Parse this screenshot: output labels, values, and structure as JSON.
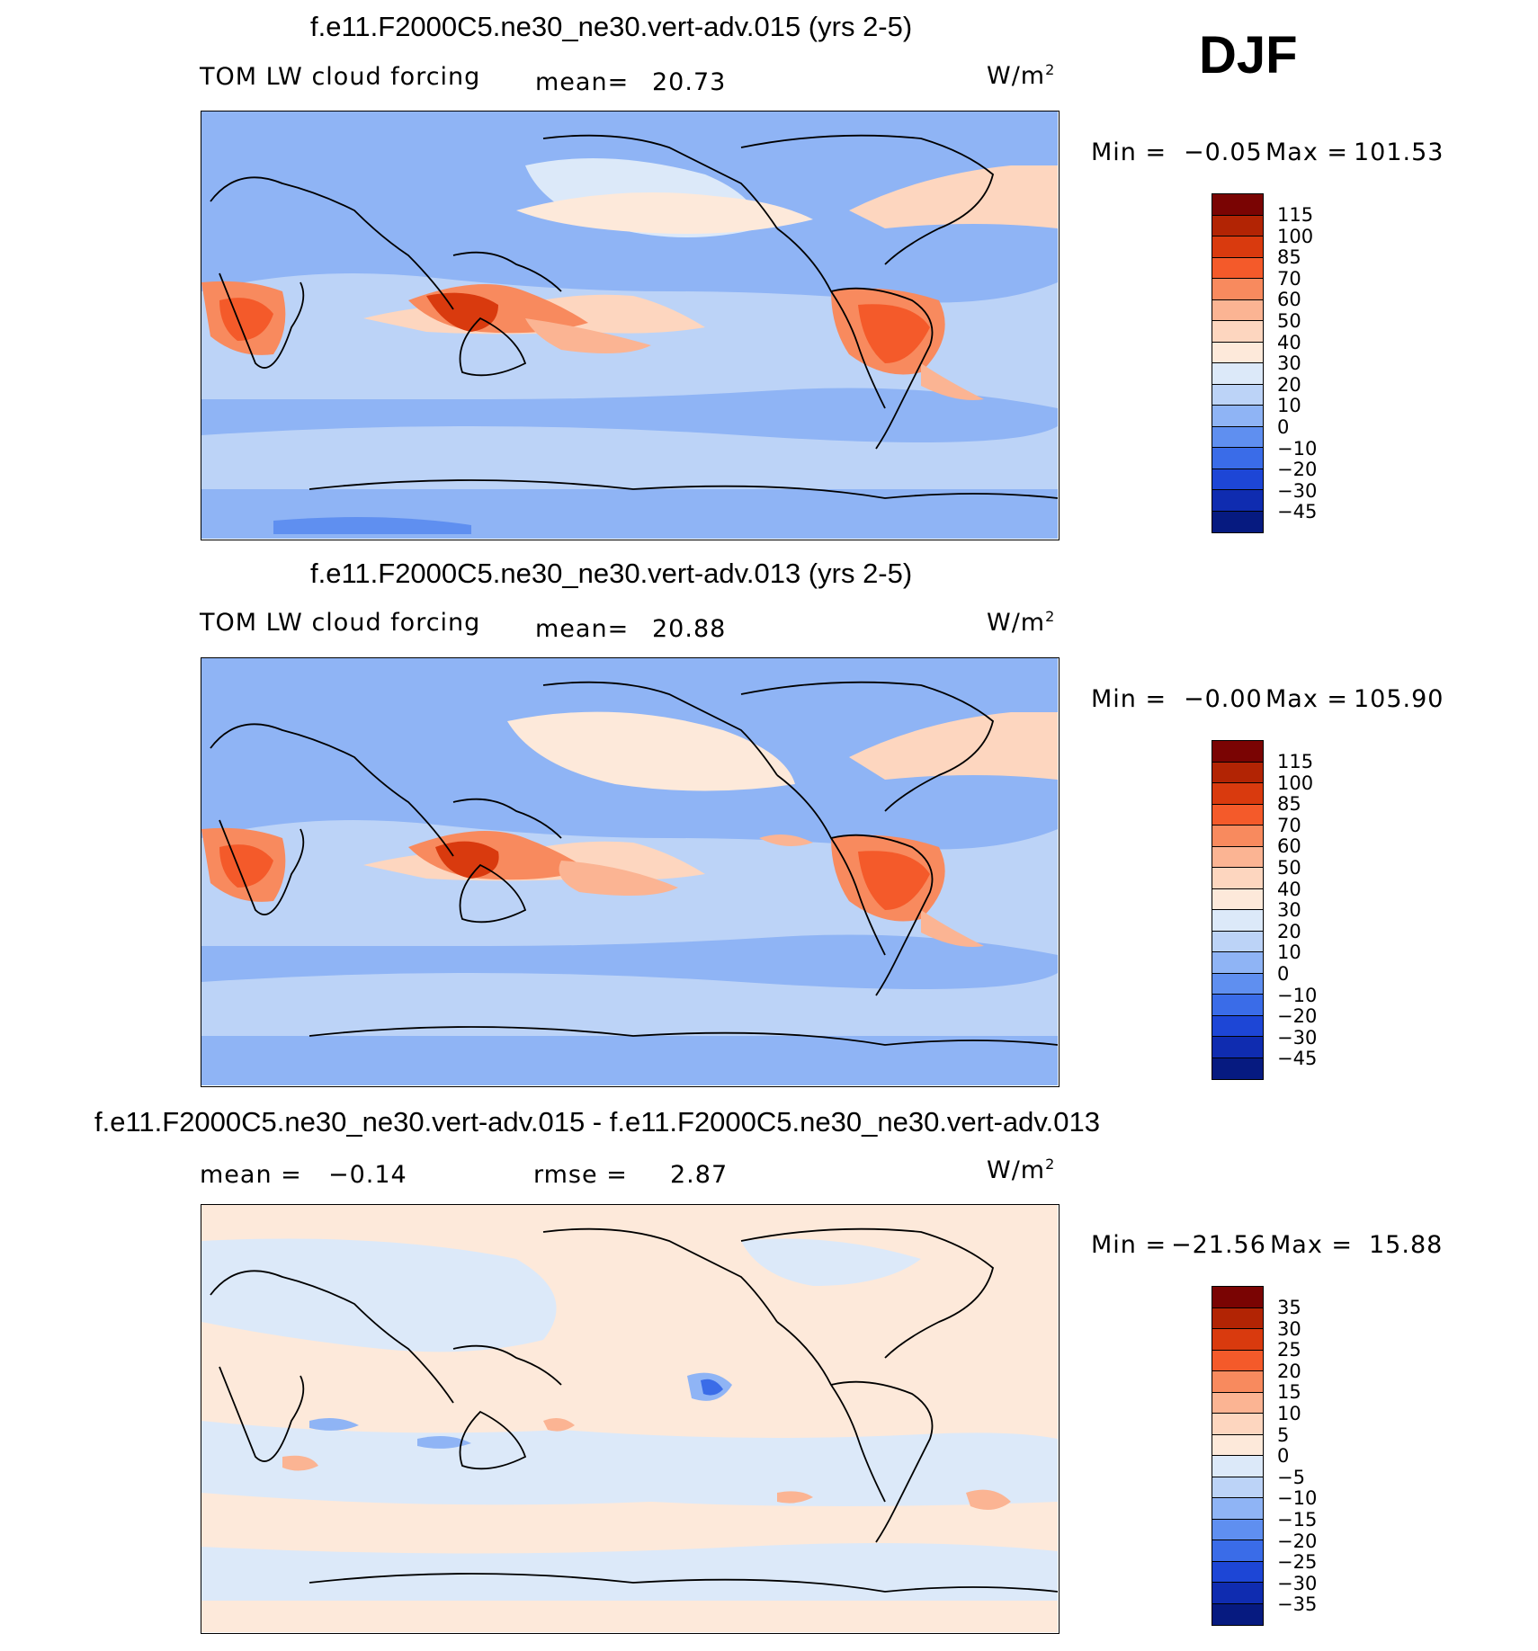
{
  "season": "DJF",
  "units": "W/m",
  "units_sup": "2",
  "field": "TOM LW cloud forcing",
  "panels": [
    {
      "title": "f.e11.F2000C5.ne30_ne30.vert-adv.015 (yrs 2-5)",
      "left_label": "TOM LW cloud forcing",
      "stat_label": "mean=",
      "stat_value": "20.73",
      "min_label": "Min =",
      "min_value": "−0.05",
      "max_label": "Max =",
      "max_value": "101.53",
      "colorbar_ticks": [
        "115",
        "100",
        "85",
        "70",
        "60",
        "50",
        "40",
        "30",
        "20",
        "10",
        "0",
        "−10",
        "−20",
        "−30",
        "−45"
      ]
    },
    {
      "title": "f.e11.F2000C5.ne30_ne30.vert-adv.013 (yrs 2-5)",
      "left_label": "TOM LW cloud forcing",
      "stat_label": "mean=",
      "stat_value": "20.88",
      "min_label": "Min =",
      "min_value": "−0.00",
      "max_label": "Max =",
      "max_value": "105.90",
      "colorbar_ticks": [
        "115",
        "100",
        "85",
        "70",
        "60",
        "50",
        "40",
        "30",
        "20",
        "10",
        "0",
        "−10",
        "−20",
        "−30",
        "−45"
      ]
    },
    {
      "title": "f.e11.F2000C5.ne30_ne30.vert-adv.015 - f.e11.F2000C5.ne30_ne30.vert-adv.013",
      "left_label": "mean =",
      "left_value": "−0.14",
      "stat_label": "rmse =",
      "stat_value": "2.87",
      "min_label": "Min =",
      "min_value": "−21.56",
      "max_label": "Max =",
      "max_value": "15.88",
      "colorbar_ticks": [
        "35",
        "30",
        "25",
        "20",
        "15",
        "10",
        "5",
        "0",
        "−5",
        "−10",
        "−15",
        "−20",
        "−25",
        "−30",
        "−35"
      ]
    }
  ],
  "colors": {
    "scale": [
      "#7a0403",
      "#b22404",
      "#d93a0e",
      "#f45a2a",
      "#f88a5e",
      "#fbb493",
      "#fdd6bf",
      "#fde9da",
      "#dce9f9",
      "#bcd3f7",
      "#8fb4f5",
      "#5f8ff0",
      "#3a6ce8",
      "#1d46d6",
      "#0f2cb0",
      "#061a80"
    ],
    "coastline": "#000000"
  }
}
